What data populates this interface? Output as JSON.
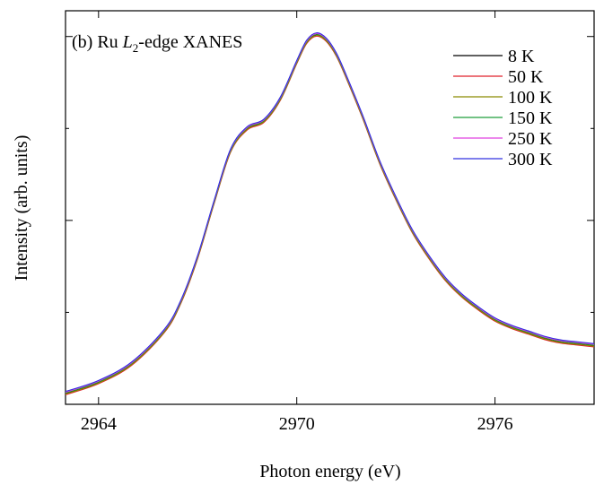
{
  "chart_data": {
    "type": "line",
    "title_prefix": "(b) Ru ",
    "title_italic": "L",
    "title_sub": "2",
    "title_suffix": "-edge XANES",
    "xlabel": "Photon energy (eV)",
    "ylabel": "Intensity (arb. units)",
    "xlim": [
      2963,
      2979
    ],
    "ylim": [
      0,
      1.07
    ],
    "xticks": [
      2964,
      2970,
      2976
    ],
    "xtick_labels": [
      "2964",
      "2970",
      "2976"
    ],
    "yticks_major": [
      0,
      0.5,
      1.0
    ],
    "yticks_minor": [
      0.25,
      0.75
    ],
    "legend_position": "top-right",
    "grid": false,
    "x": [
      2963.0,
      2964.0,
      2965.0,
      2966.0,
      2966.5,
      2967.0,
      2967.5,
      2968.0,
      2968.5,
      2969.0,
      2969.5,
      2970.0,
      2970.3,
      2970.6,
      2970.9,
      2971.2,
      2971.5,
      2972.0,
      2972.5,
      2973.0,
      2973.5,
      2974.0,
      2974.5,
      2975.0,
      2975.5,
      2976.0,
      2976.5,
      2977.0,
      2977.5,
      2978.0,
      2978.5,
      2979.0
    ],
    "series": [
      {
        "name": "8 K",
        "color": "#000000",
        "dy": 0.0,
        "values": [
          0.03,
          0.06,
          0.11,
          0.2,
          0.28,
          0.4,
          0.55,
          0.69,
          0.75,
          0.77,
          0.83,
          0.93,
          0.985,
          1.005,
          0.99,
          0.95,
          0.89,
          0.78,
          0.66,
          0.56,
          0.47,
          0.4,
          0.34,
          0.295,
          0.26,
          0.23,
          0.21,
          0.195,
          0.18,
          0.17,
          0.165,
          0.16
        ]
      },
      {
        "name": "50 K",
        "color": "#e0202a",
        "dy": -0.004,
        "values": [
          0.03,
          0.06,
          0.11,
          0.2,
          0.28,
          0.4,
          0.55,
          0.69,
          0.75,
          0.77,
          0.83,
          0.93,
          0.985,
          1.005,
          0.99,
          0.95,
          0.89,
          0.78,
          0.66,
          0.56,
          0.47,
          0.4,
          0.34,
          0.295,
          0.26,
          0.23,
          0.21,
          0.195,
          0.18,
          0.17,
          0.165,
          0.16
        ]
      },
      {
        "name": "100 K",
        "color": "#8a8a00",
        "dy": -0.002,
        "values": [
          0.03,
          0.06,
          0.11,
          0.2,
          0.28,
          0.4,
          0.55,
          0.69,
          0.75,
          0.77,
          0.83,
          0.93,
          0.985,
          1.005,
          0.99,
          0.95,
          0.89,
          0.78,
          0.66,
          0.56,
          0.47,
          0.4,
          0.34,
          0.295,
          0.26,
          0.23,
          0.21,
          0.195,
          0.18,
          0.17,
          0.165,
          0.16
        ]
      },
      {
        "name": "150 K",
        "color": "#1e9e3a",
        "dy": 0.001,
        "values": [
          0.03,
          0.06,
          0.11,
          0.2,
          0.28,
          0.4,
          0.55,
          0.69,
          0.75,
          0.77,
          0.83,
          0.93,
          0.985,
          1.005,
          0.99,
          0.95,
          0.89,
          0.78,
          0.66,
          0.56,
          0.47,
          0.4,
          0.34,
          0.295,
          0.26,
          0.23,
          0.21,
          0.195,
          0.18,
          0.17,
          0.165,
          0.16
        ]
      },
      {
        "name": "250 K",
        "color": "#e040e0",
        "dy": 0.003,
        "values": [
          0.03,
          0.06,
          0.11,
          0.2,
          0.28,
          0.4,
          0.55,
          0.69,
          0.75,
          0.77,
          0.83,
          0.93,
          0.985,
          1.005,
          0.99,
          0.95,
          0.89,
          0.78,
          0.66,
          0.56,
          0.47,
          0.4,
          0.34,
          0.295,
          0.26,
          0.23,
          0.21,
          0.195,
          0.18,
          0.17,
          0.165,
          0.16
        ]
      },
      {
        "name": "300 K",
        "color": "#3030e0",
        "dy": 0.005,
        "values": [
          0.03,
          0.06,
          0.11,
          0.2,
          0.28,
          0.4,
          0.55,
          0.69,
          0.75,
          0.77,
          0.83,
          0.93,
          0.985,
          1.005,
          0.99,
          0.95,
          0.89,
          0.78,
          0.66,
          0.56,
          0.47,
          0.4,
          0.34,
          0.295,
          0.26,
          0.23,
          0.21,
          0.195,
          0.18,
          0.17,
          0.165,
          0.16
        ]
      }
    ]
  }
}
